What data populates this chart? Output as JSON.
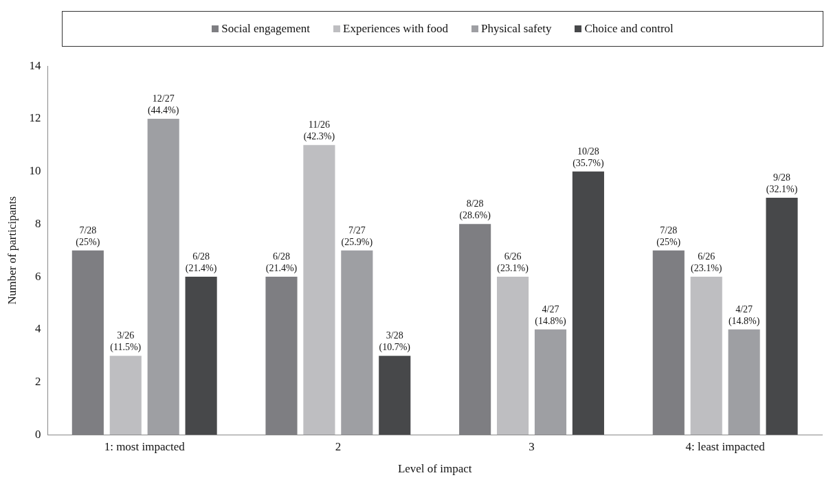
{
  "chart_data": {
    "type": "bar",
    "xlabel": "Level of impact",
    "ylabel": "Number of participants",
    "categories": [
      "1: most impacted",
      "2",
      "3",
      "4: least impacted"
    ],
    "series": [
      {
        "name": "Social engagement",
        "color": "#7e7e82",
        "values": [
          7,
          6,
          8,
          7
        ],
        "value_labels": [
          "7/28\n(25%)",
          "6/28\n(21.4%)",
          "8/28\n(28.6%)",
          "7/28\n(25%)"
        ]
      },
      {
        "name": "Experiences with food",
        "color": "#bebec1",
        "values": [
          3,
          11,
          6,
          6
        ],
        "value_labels": [
          "3/26\n(11.5%)",
          "11/26\n(42.3%)",
          "6/26\n(23.1%)",
          "6/26\n(23.1%)"
        ]
      },
      {
        "name": "Physical safety",
        "color": "#9e9fa3",
        "values": [
          12,
          7,
          4,
          4
        ],
        "value_labels": [
          "12/27\n(44.4%)",
          "7/27\n(25.9%)",
          "4/27\n(14.8%)",
          "4/27\n(14.8%)"
        ]
      },
      {
        "name": "Choice and control",
        "color": "#47484a",
        "values": [
          6,
          3,
          10,
          9
        ],
        "value_labels": [
          "6/28\n(21.4%)",
          "3/28\n(10.7%)",
          "10/28\n(35.7%)",
          "9/28\n(32.1%)"
        ]
      }
    ],
    "ylim": [
      0,
      14
    ],
    "yticks": [
      0,
      2,
      4,
      6,
      8,
      10,
      12,
      14
    ],
    "grid": false,
    "legend": "top"
  }
}
